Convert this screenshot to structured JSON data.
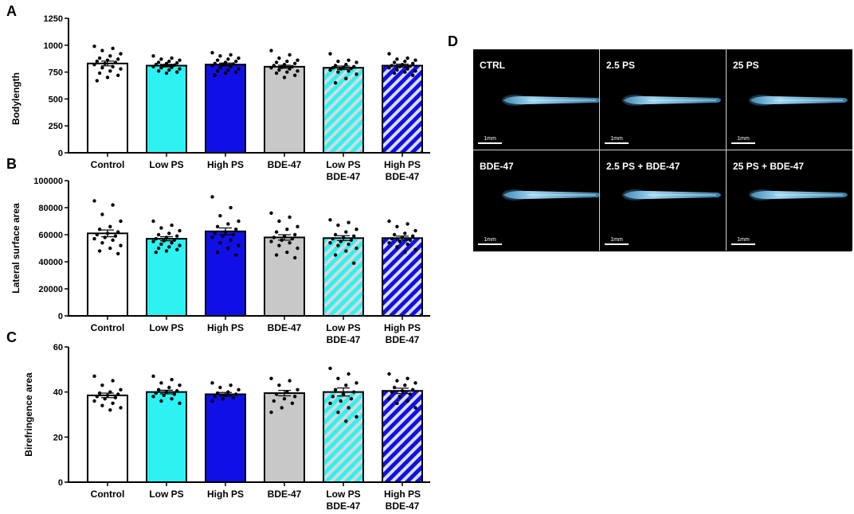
{
  "colors": {
    "control": "#ffffff",
    "low_ps": "#2ef2f2",
    "high_ps": "#1010e6",
    "bde47": "#c8c8c8",
    "stripe_light": "#dcdcdc",
    "stripe_dark": "#e8e8f8",
    "panel_bg": "#000000",
    "fish": "#8fd4ff"
  },
  "chart_data": [
    {
      "type": "bar",
      "panel_letter": "A",
      "ylabel": "Bodylength",
      "ylim": [
        0,
        1250
      ],
      "yticks": [
        "0",
        "250",
        "500",
        "750",
        "1000",
        "1250"
      ],
      "categories": [
        {
          "line1": "Control",
          "line2": ""
        },
        {
          "line1": "Low PS",
          "line2": ""
        },
        {
          "line1": "High PS",
          "line2": ""
        },
        {
          "line1": "BDE-47",
          "line2": ""
        },
        {
          "line1": "Low PS",
          "line2": "BDE-47"
        },
        {
          "line1": "High PS",
          "line2": "BDE-47"
        }
      ],
      "values": [
        830,
        810,
        820,
        800,
        790,
        810
      ],
      "sem": [
        22,
        12,
        14,
        14,
        16,
        14
      ],
      "points": [
        [
          990,
          970,
          950,
          920,
          900,
          880,
          870,
          860,
          850,
          840,
          830,
          820,
          800,
          790,
          780,
          760,
          740,
          720,
          700,
          670
        ],
        [
          900,
          880,
          870,
          860,
          850,
          840,
          835,
          830,
          820,
          815,
          810,
          800,
          795,
          790,
          780,
          770,
          760,
          750,
          740
        ],
        [
          930,
          910,
          900,
          880,
          870,
          860,
          850,
          840,
          830,
          825,
          820,
          810,
          800,
          790,
          780,
          770,
          760,
          750,
          740,
          720
        ],
        [
          950,
          910,
          880,
          860,
          850,
          840,
          830,
          820,
          810,
          800,
          795,
          790,
          780,
          770,
          760,
          750,
          740,
          720,
          700
        ],
        [
          920,
          860,
          850,
          840,
          820,
          810,
          800,
          795,
          790,
          785,
          780,
          770,
          760,
          750,
          730,
          690,
          650
        ],
        [
          920,
          880,
          870,
          860,
          850,
          840,
          830,
          820,
          810,
          805,
          800,
          790,
          780,
          770,
          760,
          750,
          740,
          720
        ]
      ]
    },
    {
      "type": "bar",
      "panel_letter": "B",
      "ylabel": "Lateral surface area",
      "ylim": [
        0,
        100000
      ],
      "yticks": [
        "0",
        "20000",
        "40000",
        "60000",
        "80000",
        "100000"
      ],
      "categories": [
        {
          "line1": "Control",
          "line2": ""
        },
        {
          "line1": "Low PS",
          "line2": ""
        },
        {
          "line1": "High PS",
          "line2": ""
        },
        {
          "line1": "BDE-47",
          "line2": ""
        },
        {
          "line1": "Low PS",
          "line2": "BDE-47"
        },
        {
          "line1": "High PS",
          "line2": "BDE-47"
        }
      ],
      "values": [
        61000,
        57000,
        62500,
        58000,
        57500,
        57500
      ],
      "sem": [
        2500,
        1500,
        2500,
        2000,
        1800,
        1500
      ],
      "points": [
        [
          85000,
          82000,
          75000,
          70000,
          66000,
          64000,
          62000,
          61000,
          60000,
          59000,
          58000,
          57000,
          56000,
          54000,
          52000,
          50000,
          48000,
          46000
        ],
        [
          70000,
          67000,
          65000,
          63000,
          61000,
          60000,
          59000,
          58000,
          57000,
          56000,
          55500,
          55000,
          54000,
          53000,
          52000,
          51000,
          50000,
          49000,
          48000,
          47000
        ],
        [
          88000,
          80000,
          74000,
          70000,
          68000,
          66000,
          64000,
          62000,
          61000,
          60000,
          59000,
          58000,
          56000,
          54000,
          52000,
          50000,
          47000,
          45000
        ],
        [
          76000,
          73000,
          70000,
          66000,
          64000,
          62000,
          60000,
          59000,
          58000,
          57000,
          56000,
          55000,
          54000,
          52000,
          50000,
          47000,
          45000,
          43000
        ],
        [
          71000,
          69000,
          67000,
          64000,
          62000,
          60000,
          59000,
          58000,
          57000,
          56000,
          55000,
          54000,
          53000,
          52000,
          50000,
          48000,
          45000,
          39000
        ],
        [
          70000,
          68000,
          66000,
          63000,
          61000,
          60000,
          59000,
          58000,
          57000,
          56000,
          55000,
          54000,
          53000,
          51000,
          49000,
          47000
        ]
      ]
    },
    {
      "type": "bar",
      "panel_letter": "C",
      "ylabel": "Birefringence area",
      "ylim": [
        0,
        60
      ],
      "yticks": [
        "0",
        "20",
        "40",
        "60"
      ],
      "categories": [
        {
          "line1": "Control",
          "line2": ""
        },
        {
          "line1": "Low PS",
          "line2": ""
        },
        {
          "line1": "High PS",
          "line2": ""
        },
        {
          "line1": "BDE-47",
          "line2": ""
        },
        {
          "line1": "Low PS",
          "line2": "BDE-47"
        },
        {
          "line1": "High PS",
          "line2": "BDE-47"
        }
      ],
      "values": [
        38.5,
        40.0,
        39.0,
        39.5,
        40.0,
        40.5
      ],
      "sem": [
        1.0,
        0.8,
        0.8,
        1.2,
        1.8,
        1.2
      ],
      "points": [
        [
          47,
          45,
          43,
          41,
          40,
          39.5,
          39,
          38.5,
          38,
          37.5,
          37,
          36,
          35,
          34,
          33,
          32
        ],
        [
          47,
          45.5,
          44,
          43,
          42,
          41,
          40.5,
          40,
          39.5,
          39,
          38.5,
          38,
          37,
          36,
          35
        ],
        [
          44,
          43,
          42,
          41,
          40,
          39.5,
          39,
          38.5,
          38,
          37.5,
          37,
          36
        ],
        [
          46,
          45,
          43,
          41,
          40,
          39,
          38,
          37,
          36,
          35,
          33,
          31
        ],
        [
          50.5,
          48,
          46,
          44,
          43,
          41,
          40,
          39,
          38,
          37,
          36,
          35,
          33,
          31,
          29,
          27
        ],
        [
          48,
          46,
          45,
          44,
          43,
          42,
          41,
          40.5,
          40,
          39,
          38,
          37,
          36,
          35,
          33
        ]
      ]
    }
  ],
  "panel_d": {
    "letter": "D",
    "scale_label": "1mm",
    "cells": [
      {
        "label": "CTRL"
      },
      {
        "label": "2.5 PS"
      },
      {
        "label": "25 PS"
      },
      {
        "label": "BDE-47"
      },
      {
        "label": "2.5 PS + BDE-47"
      },
      {
        "label": "25 PS + BDE-47"
      }
    ]
  }
}
